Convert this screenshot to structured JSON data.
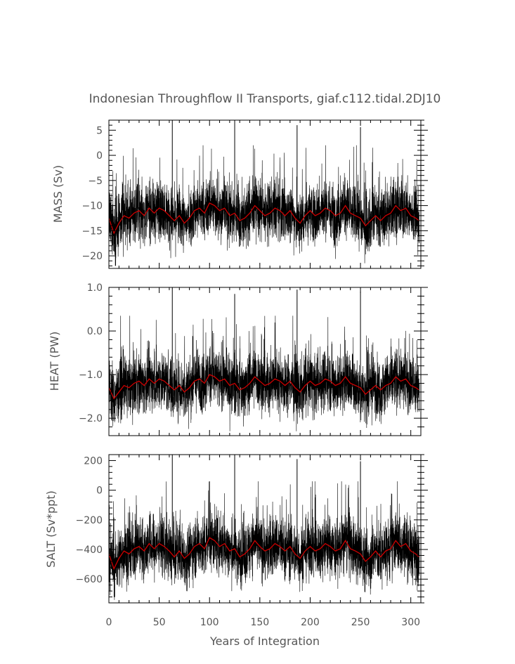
{
  "chart_data": {
    "type": "line",
    "title": "Indonesian Throughflow II Transports, giaf.c112.tidal.2DJ10",
    "xlabel": "Years of Integration",
    "xlim": [
      0,
      310
    ],
    "xticks": [
      0,
      50,
      100,
      150,
      200,
      250,
      300
    ],
    "xtick_labels": [
      "0",
      "50",
      "100",
      "150",
      "200",
      "250",
      "300"
    ],
    "grid": false,
    "panels": [
      {
        "ylabel": "MASS (Sv)",
        "ylim": [
          -22.5,
          7
        ],
        "yticks": [
          5,
          0,
          -5,
          -10,
          -15,
          -20
        ],
        "ytick_labels": [
          "5",
          "0",
          "−5",
          "−10",
          "−15",
          "−20"
        ],
        "series": [
          {
            "style": "monthly",
            "color": "#000000",
            "mean": -11.5,
            "spread": 3.4,
            "min": -22,
            "max": 2,
            "spikes": [
              {
                "x": 63,
                "y": 7
              },
              {
                "x": 125,
                "y": 7
              },
              {
                "x": 187,
                "y": 6
              },
              {
                "x": 250,
                "y": 5.6
              }
            ]
          },
          {
            "style": "annual",
            "color": "#cc0000",
            "x": [
              0,
              5,
              10,
              15,
              20,
              25,
              30,
              35,
              40,
              45,
              50,
              55,
              60,
              65,
              70,
              75,
              80,
              85,
              90,
              95,
              100,
              105,
              110,
              115,
              120,
              125,
              130,
              135,
              140,
              145,
              150,
              155,
              160,
              165,
              170,
              175,
              180,
              185,
              190,
              195,
              200,
              205,
              210,
              215,
              220,
              225,
              230,
              235,
              240,
              245,
              250,
              255,
              260,
              265,
              270,
              275,
              280,
              285,
              290,
              295,
              300,
              305,
              308
            ],
            "y": [
              -12.5,
              -15.5,
              -13.5,
              -12.0,
              -12.5,
              -11.5,
              -11.0,
              -12.0,
              -10.5,
              -11.5,
              -10.5,
              -11.0,
              -12.0,
              -13.0,
              -12.0,
              -13.5,
              -12.5,
              -11.0,
              -10.5,
              -11.5,
              -9.5,
              -10.0,
              -11.0,
              -10.5,
              -12.0,
              -11.5,
              -13.0,
              -12.5,
              -11.5,
              -10.0,
              -11.0,
              -12.0,
              -11.5,
              -10.5,
              -11.0,
              -12.0,
              -11.0,
              -12.5,
              -13.5,
              -12.0,
              -11.0,
              -12.0,
              -11.5,
              -10.5,
              -11.0,
              -12.0,
              -11.5,
              -10.0,
              -11.5,
              -12.0,
              -12.5,
              -14.0,
              -13.0,
              -12.0,
              -13.0,
              -12.0,
              -11.5,
              -10.0,
              -11.0,
              -10.5,
              -12.0,
              -12.5,
              -13.0
            ]
          }
        ]
      },
      {
        "ylabel": "HEAT (PW)",
        "ylim": [
          -2.4,
          1.0
        ],
        "yticks": [
          1.0,
          0.0,
          -1.0,
          -2.0
        ],
        "ytick_labels": [
          "1.0",
          "0.0",
          "−1.0",
          "−2.0"
        ],
        "series": [
          {
            "style": "monthly",
            "color": "#000000",
            "mean": -1.2,
            "spread": 0.4,
            "min": -2.3,
            "max": 0.35,
            "spikes": [
              {
                "x": 63,
                "y": 1.0
              },
              {
                "x": 125,
                "y": 0.85
              },
              {
                "x": 187,
                "y": 0.95
              },
              {
                "x": 250,
                "y": 0.9
              }
            ]
          },
          {
            "style": "annual",
            "color": "#cc0000",
            "x": [
              0,
              5,
              10,
              15,
              20,
              25,
              30,
              35,
              40,
              45,
              50,
              55,
              60,
              65,
              70,
              75,
              80,
              85,
              90,
              95,
              100,
              105,
              110,
              115,
              120,
              125,
              130,
              135,
              140,
              145,
              150,
              155,
              160,
              165,
              170,
              175,
              180,
              185,
              190,
              195,
              200,
              205,
              210,
              215,
              220,
              225,
              230,
              235,
              240,
              245,
              250,
              255,
              260,
              265,
              270,
              275,
              280,
              285,
              290,
              295,
              300,
              305,
              308
            ],
            "y": [
              -1.3,
              -1.55,
              -1.4,
              -1.25,
              -1.3,
              -1.2,
              -1.15,
              -1.25,
              -1.1,
              -1.2,
              -1.1,
              -1.15,
              -1.25,
              -1.35,
              -1.25,
              -1.4,
              -1.3,
              -1.15,
              -1.1,
              -1.2,
              -1.0,
              -1.05,
              -1.15,
              -1.1,
              -1.25,
              -1.2,
              -1.35,
              -1.3,
              -1.2,
              -1.05,
              -1.15,
              -1.25,
              -1.2,
              -1.1,
              -1.15,
              -1.25,
              -1.15,
              -1.3,
              -1.4,
              -1.25,
              -1.15,
              -1.25,
              -1.2,
              -1.1,
              -1.15,
              -1.25,
              -1.2,
              -1.05,
              -1.2,
              -1.25,
              -1.3,
              -1.45,
              -1.35,
              -1.25,
              -1.35,
              -1.25,
              -1.2,
              -1.05,
              -1.15,
              -1.1,
              -1.25,
              -1.3,
              -1.35
            ]
          }
        ]
      },
      {
        "ylabel": "SALT (Sv*ppt)",
        "ylim": [
          -760,
          240
        ],
        "yticks": [
          200,
          0,
          -200,
          -400,
          -600
        ],
        "ytick_labels": [
          "200",
          "0",
          "−200",
          "−400",
          "−600"
        ],
        "series": [
          {
            "style": "monthly",
            "color": "#000000",
            "mean": -400,
            "spread": 120,
            "min": -740,
            "max": 60,
            "spikes": [
              {
                "x": 63,
                "y": 240
              },
              {
                "x": 125,
                "y": 240
              },
              {
                "x": 187,
                "y": 210
              },
              {
                "x": 250,
                "y": 195
              }
            ]
          },
          {
            "style": "annual",
            "color": "#cc0000",
            "x": [
              0,
              5,
              10,
              15,
              20,
              25,
              30,
              35,
              40,
              45,
              50,
              55,
              60,
              65,
              70,
              75,
              80,
              85,
              90,
              95,
              100,
              105,
              110,
              115,
              120,
              125,
              130,
              135,
              140,
              145,
              150,
              155,
              160,
              165,
              170,
              175,
              180,
              185,
              190,
              195,
              200,
              205,
              210,
              215,
              220,
              225,
              230,
              235,
              240,
              245,
              250,
              255,
              260,
              265,
              270,
              275,
              280,
              285,
              290,
              295,
              300,
              305,
              308
            ],
            "y": [
              -430,
              -530,
              -460,
              -410,
              -430,
              -395,
              -380,
              -410,
              -360,
              -395,
              -360,
              -380,
              -410,
              -450,
              -410,
              -460,
              -430,
              -380,
              -360,
              -395,
              -320,
              -340,
              -380,
              -360,
              -410,
              -395,
              -450,
              -430,
              -395,
              -340,
              -380,
              -410,
              -395,
              -360,
              -380,
              -410,
              -380,
              -430,
              -460,
              -410,
              -380,
              -410,
              -395,
              -360,
              -380,
              -410,
              -395,
              -340,
              -395,
              -410,
              -430,
              -480,
              -450,
              -410,
              -450,
              -410,
              -395,
              -340,
              -380,
              -360,
              -410,
              -430,
              -450
            ]
          }
        ]
      }
    ]
  }
}
